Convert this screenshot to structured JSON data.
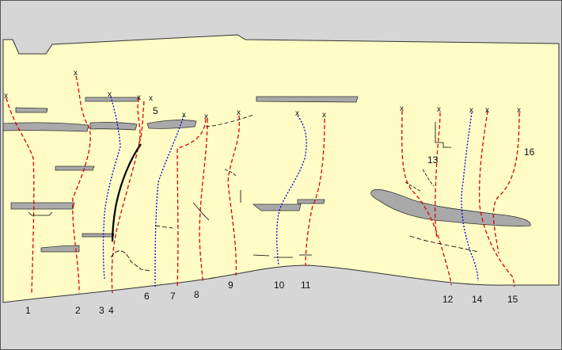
{
  "labels": [
    "1",
    "2",
    "3",
    "4",
    "5",
    "6",
    "7",
    "8",
    "9",
    "10",
    "11",
    "12",
    "13",
    "14",
    "15",
    "16"
  ],
  "marker": "x",
  "colors": {
    "background": "#d4d4d4",
    "layer": "#fffcc5",
    "slab": "#a8a8a8",
    "red": "#dd0000",
    "blue": "#0000dd",
    "black": "#000000"
  }
}
